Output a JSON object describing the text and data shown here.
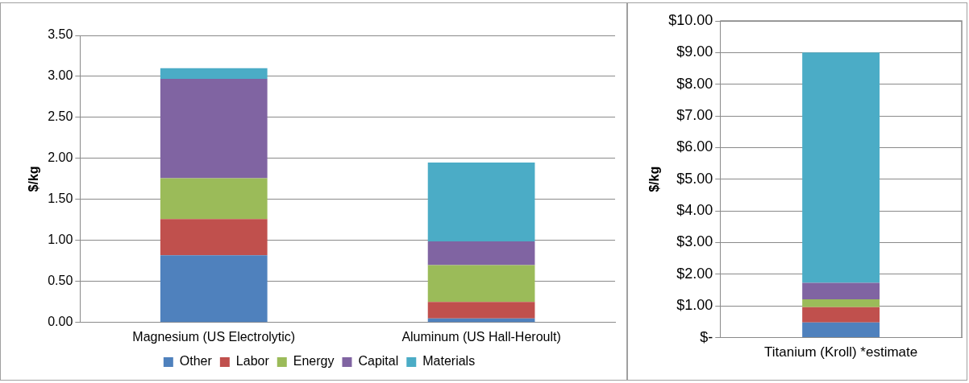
{
  "chart_data": [
    {
      "type": "bar",
      "ylabel": "$/kg",
      "categories": [
        "Magnesium (US Electrolytic)",
        "Aluminum (US Hall-Heroult)"
      ],
      "stacked": true,
      "grid": "y",
      "legend": "bottom",
      "ylim": [
        0,
        3.5
      ],
      "yticks": [
        {
          "value": 0,
          "label": "0.00"
        },
        {
          "value": 0.5,
          "label": "0.50"
        },
        {
          "value": 1,
          "label": "1.00"
        },
        {
          "value": 1.5,
          "label": "1.50"
        },
        {
          "value": 2,
          "label": "2.00"
        },
        {
          "value": 2.5,
          "label": "2.50"
        },
        {
          "value": 3,
          "label": "3.00"
        },
        {
          "value": 3.5,
          "label": "3.50"
        }
      ],
      "series": [
        {
          "name": "Other",
          "color": "#4f81bd",
          "values": [
            0.82,
            0.05
          ]
        },
        {
          "name": "Labor",
          "color": "#c0504d",
          "values": [
            0.44,
            0.2
          ]
        },
        {
          "name": "Energy",
          "color": "#9bbb59",
          "values": [
            0.5,
            0.45
          ]
        },
        {
          "name": "Capital",
          "color": "#8064a2",
          "values": [
            1.21,
            0.29
          ]
        },
        {
          "name": "Materials",
          "color": "#4bacc6",
          "values": [
            0.13,
            0.96
          ]
        }
      ]
    },
    {
      "type": "bar",
      "ylabel": "$/kg",
      "categories": [
        "Titanium (Kroll) *estimate"
      ],
      "stacked": true,
      "grid": "y",
      "ylim": [
        0,
        10
      ],
      "yticks": [
        {
          "value": 0,
          "label": "$-"
        },
        {
          "value": 1,
          "label": "$1.00"
        },
        {
          "value": 2,
          "label": "$2.00"
        },
        {
          "value": 3,
          "label": "$3.00"
        },
        {
          "value": 4,
          "label": "$4.00"
        },
        {
          "value": 5,
          "label": "$5.00"
        },
        {
          "value": 6,
          "label": "$6.00"
        },
        {
          "value": 7,
          "label": "$7.00"
        },
        {
          "value": 8,
          "label": "$8.00"
        },
        {
          "value": 9,
          "label": "$9.00"
        },
        {
          "value": 10,
          "label": "$10.00"
        }
      ],
      "series": [
        {
          "color": "#4f81bd",
          "values": [
            0.48
          ]
        },
        {
          "color": "#c0504d",
          "values": [
            0.48
          ]
        },
        {
          "color": "#9bbb59",
          "values": [
            0.25
          ]
        },
        {
          "color": "#8064a2",
          "values": [
            0.52
          ]
        },
        {
          "color": "#4bacc6",
          "values": [
            7.27
          ]
        }
      ]
    }
  ]
}
